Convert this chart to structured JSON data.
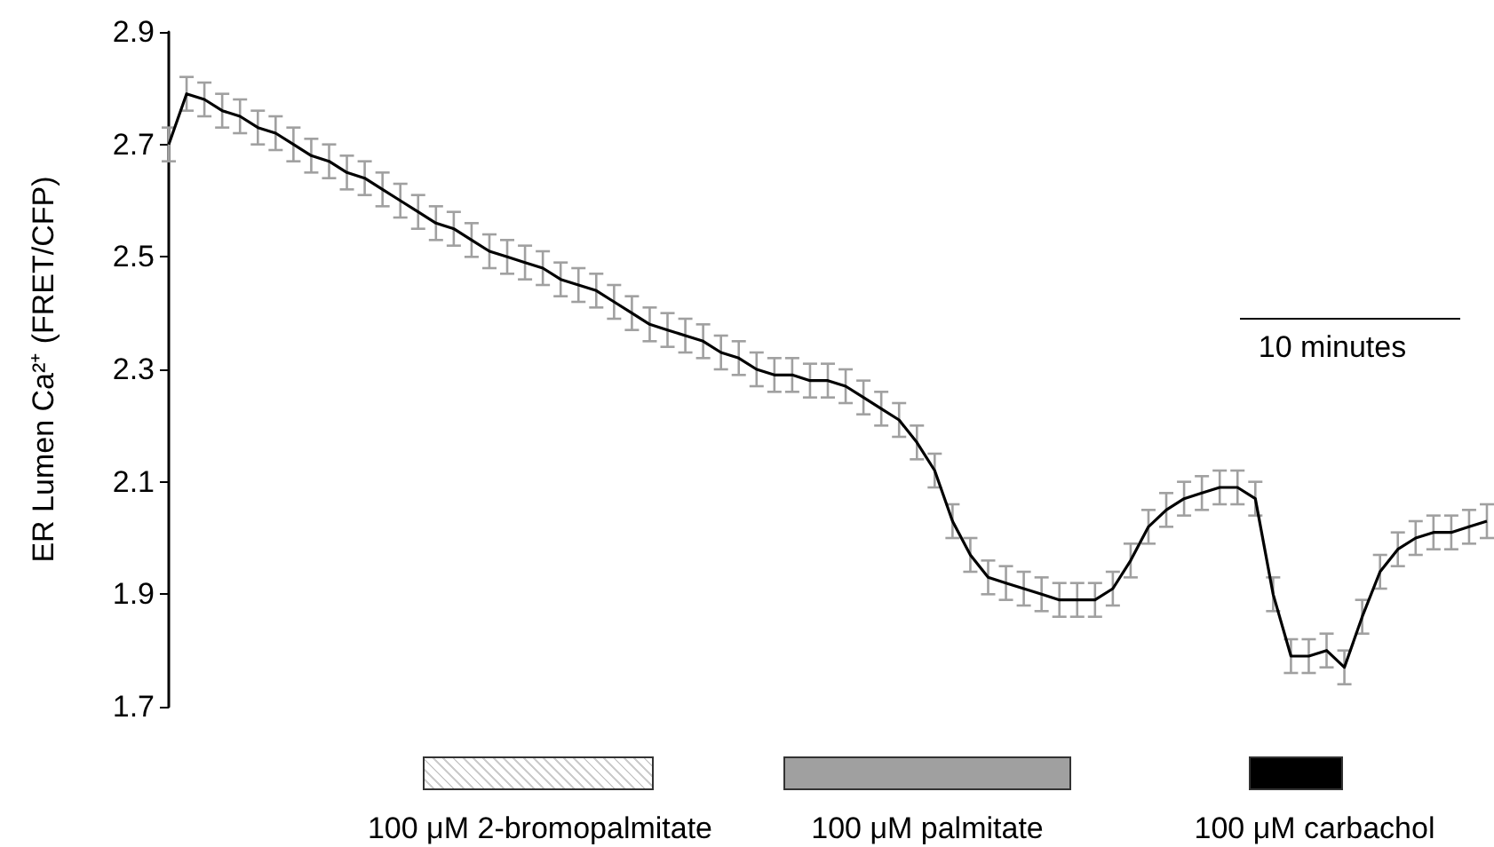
{
  "chart_data": {
    "type": "line",
    "ylabel": "ER Lumen Ca²⁺ (FRET/CFP)",
    "categories": [
      null,
      null,
      null,
      null,
      null,
      null,
      null,
      null,
      null,
      null,
      null,
      null,
      null,
      null,
      null,
      null,
      null,
      null,
      null,
      null,
      null,
      null,
      null,
      null,
      null,
      null,
      null,
      null,
      null,
      null,
      null,
      null,
      null,
      null,
      null,
      null,
      null,
      null,
      null,
      null,
      null,
      null,
      null,
      null,
      null,
      null,
      null,
      null,
      null,
      null,
      null,
      null,
      null,
      null,
      null,
      null,
      null,
      null,
      null,
      null,
      null,
      null,
      null,
      null,
      null,
      null,
      null,
      null,
      null,
      null,
      null,
      null,
      null,
      null,
      null
    ],
    "series": [
      {
        "color": "#000000",
        "values": [
          2.7,
          2.79,
          2.78,
          2.76,
          2.75,
          2.73,
          2.72,
          2.7,
          2.68,
          2.67,
          2.65,
          2.64,
          2.62,
          2.6,
          2.58,
          2.56,
          2.55,
          2.53,
          2.51,
          2.5,
          2.49,
          2.48,
          2.46,
          2.45,
          2.44,
          2.42,
          2.4,
          2.38,
          2.37,
          2.36,
          2.35,
          2.33,
          2.32,
          2.3,
          2.29,
          2.29,
          2.28,
          2.28,
          2.27,
          2.25,
          2.23,
          2.21,
          2.17,
          2.12,
          2.03,
          1.97,
          1.93,
          1.92,
          1.91,
          1.9,
          1.89,
          1.89,
          1.89,
          1.91,
          1.96,
          2.02,
          2.05,
          2.07,
          2.08,
          2.09,
          2.09,
          2.07,
          1.9,
          1.79,
          1.79,
          1.8,
          1.77,
          1.86,
          1.94,
          1.98,
          2.0,
          2.01,
          2.01,
          2.02,
          2.03
        ],
        "errors": [
          0.03,
          0.03,
          0.03,
          0.03,
          0.03,
          0.03,
          0.03,
          0.03,
          0.03,
          0.03,
          0.03,
          0.03,
          0.03,
          0.03,
          0.03,
          0.03,
          0.03,
          0.03,
          0.03,
          0.03,
          0.03,
          0.03,
          0.03,
          0.03,
          0.03,
          0.03,
          0.03,
          0.03,
          0.03,
          0.03,
          0.03,
          0.03,
          0.03,
          0.03,
          0.03,
          0.03,
          0.03,
          0.03,
          0.03,
          0.03,
          0.03,
          0.03,
          0.03,
          0.03,
          0.03,
          0.03,
          0.03,
          0.03,
          0.03,
          0.03,
          0.03,
          0.03,
          0.03,
          0.03,
          0.03,
          0.03,
          0.03,
          0.03,
          0.03,
          0.03,
          0.03,
          0.03,
          0.03,
          0.03,
          0.03,
          0.03,
          0.03,
          0.03,
          0.03,
          0.03,
          0.03,
          0.03,
          0.03,
          0.03,
          0.03
        ]
      }
    ],
    "ylim": [
      1.7,
      2.9
    ],
    "yticks": [
      1.7,
      1.9,
      2.1,
      2.3,
      2.5,
      2.7,
      2.9
    ],
    "tick_labels": "y",
    "grid": false,
    "marker": "none",
    "line_style": "solid",
    "annotations": [
      "10 minutes",
      "100 μM 2-bromopalmitate",
      "100 μM palmitate",
      "100 μM carbachol"
    ]
  }
}
